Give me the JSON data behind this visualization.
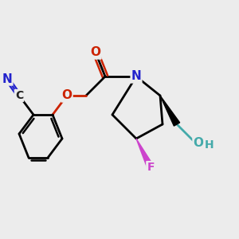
{
  "bg_color": "#ececec",
  "bond_lw": 2.0,
  "atom_colors": {
    "F": "#cc44cc",
    "N": "#2222cc",
    "O": "#cc2200",
    "OH": "#44aaaa",
    "C": "#111111"
  }
}
